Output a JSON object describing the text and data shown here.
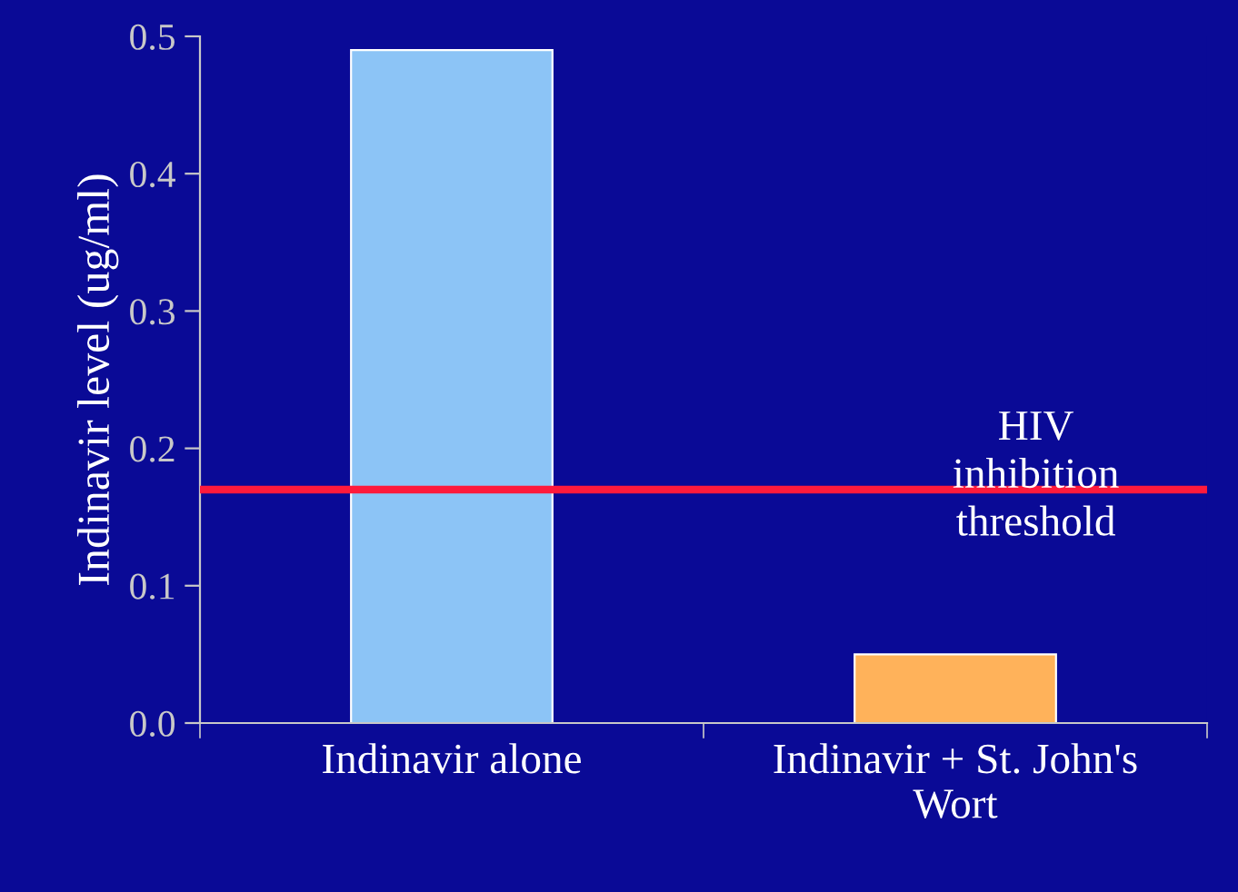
{
  "chart_data": {
    "type": "bar",
    "ylabel": "Indinavir level (ug/ml)",
    "categories": [
      "Indinavir alone",
      "Indinavir + St. John's\nWort"
    ],
    "values": [
      0.49,
      0.05
    ],
    "colors": [
      "#8cc4f6",
      "#ffb25a"
    ],
    "ylim": [
      0,
      0.5
    ],
    "yticks": [
      {
        "value": 0,
        "label": "0.0"
      },
      {
        "value": 0.1,
        "label": "0.1"
      },
      {
        "value": 0.2,
        "label": "0.2"
      },
      {
        "value": 0.3,
        "label": "0.3"
      },
      {
        "value": 0.4,
        "label": "0.4"
      },
      {
        "value": 0.5,
        "label": "0.5"
      }
    ],
    "ref_lines": [
      {
        "axis": "y",
        "value": 0.17,
        "label": "HIV\ninhibition\nthreshold",
        "color": "#ff1a3c",
        "line_style": "solid"
      }
    ],
    "grid": false
  }
}
